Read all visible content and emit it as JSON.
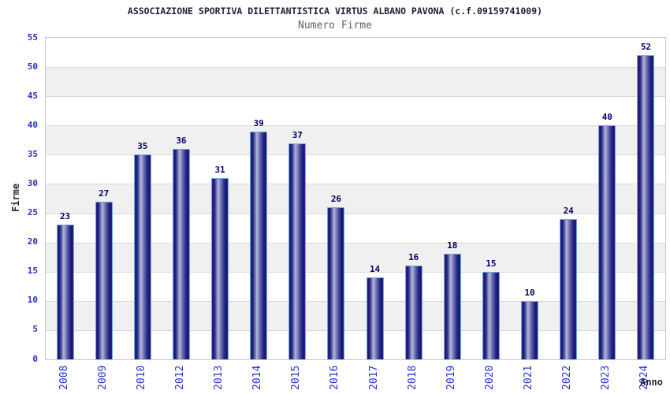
{
  "header": {
    "title": "ASSOCIAZIONE SPORTIVA DILETTANTISTICA VIRTUS ALBANO PAVONA (c.f.09159741009)",
    "subtitle": "Numero Firme"
  },
  "chart_data": {
    "type": "bar",
    "title": "ASSOCIAZIONE SPORTIVA DILETTANTISTICA VIRTUS ALBANO PAVONA (c.f.09159741009)",
    "subtitle": "Numero Firme",
    "xlabel": "Anno",
    "ylabel": "Firme",
    "categories": [
      "2008",
      "2009",
      "2010",
      "2012",
      "2013",
      "2014",
      "2015",
      "2016",
      "2017",
      "2018",
      "2019",
      "2020",
      "2021",
      "2022",
      "2023",
      "2024"
    ],
    "values": [
      23,
      27,
      35,
      36,
      31,
      39,
      37,
      26,
      14,
      16,
      18,
      15,
      10,
      24,
      40,
      52
    ],
    "ylim": [
      0,
      55
    ],
    "ytick_step": 5,
    "yticks": [
      0,
      5,
      10,
      15,
      20,
      25,
      30,
      35,
      40,
      45,
      50,
      55
    ],
    "grid": true,
    "legend_position": "none",
    "bar_value_labels_shown": true,
    "colors": {
      "tick_label": "#2732cb",
      "category_label": "#2732cb",
      "value_label": "#000069",
      "axis_title": "#26262e",
      "title": "#1e1e38",
      "subtitle": "#606060",
      "band_white": "#ffffff",
      "band_alt": "#f0f0f0",
      "gridline": "#d9d9d9",
      "plot_border": "#c9c9c9",
      "bar_edge_dark": "#17176b",
      "bar_highlight": "#b4b8da",
      "bar_outline": "#6ea8e0"
    }
  }
}
